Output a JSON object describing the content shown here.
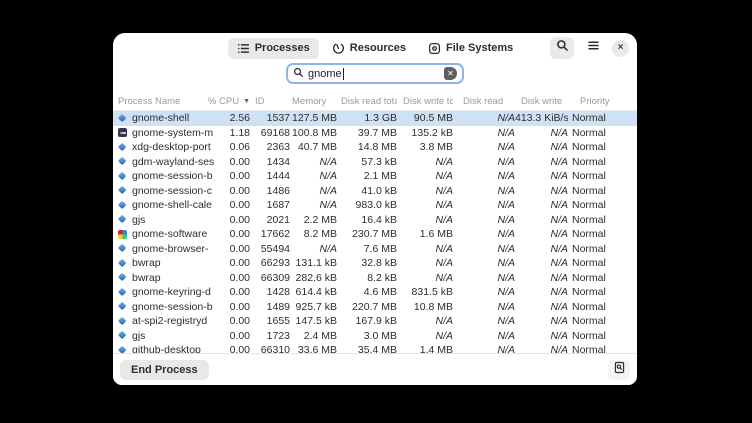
{
  "colors": {
    "accent": "#3584e4",
    "selection_row": "#cfe1f4",
    "active_tab_bg": "#e9e9e9"
  },
  "header": {
    "tabs": [
      {
        "label": "Processes",
        "icon": "processes-list-icon",
        "active": true
      },
      {
        "label": "Resources",
        "icon": "speedometer-icon",
        "active": false
      },
      {
        "label": "File Systems",
        "icon": "disk-icon",
        "active": false
      }
    ],
    "close_label": "×"
  },
  "search": {
    "value": "gnome"
  },
  "table": {
    "sort_arrow": "▼",
    "columns": [
      {
        "label": "Process Name"
      },
      {
        "label": "% CPU",
        "sort": "desc"
      },
      {
        "label": "ID"
      },
      {
        "label": "Memory"
      },
      {
        "label": "Disk read total"
      },
      {
        "label": "Disk write total"
      },
      {
        "label": "Disk read"
      },
      {
        "label": "Disk write"
      },
      {
        "label": "Priority"
      }
    ],
    "rows": [
      {
        "icon": "app",
        "name": "gnome-shell",
        "cpu": "2.56",
        "id": "1537",
        "memory": "127.5 MB",
        "disk_read_total": "1.3 GB",
        "disk_write_total": "90.5 MB",
        "disk_read": "N/A",
        "disk_write": "413.3 KiB/s",
        "priority": "Normal",
        "selected": true
      },
      {
        "icon": "monitor",
        "name": "gnome-system-m",
        "cpu": "1.18",
        "id": "69168",
        "memory": "100.8 MB",
        "disk_read_total": "39.7 MB",
        "disk_write_total": "135.2 kB",
        "disk_read": "N/A",
        "disk_write": "N/A",
        "priority": "Normal",
        "selected": false
      },
      {
        "icon": "app",
        "name": "xdg-desktop-port",
        "cpu": "0.06",
        "id": "2363",
        "memory": "40.7 MB",
        "disk_read_total": "14.8 MB",
        "disk_write_total": "3.8 MB",
        "disk_read": "N/A",
        "disk_write": "N/A",
        "priority": "Normal",
        "selected": false
      },
      {
        "icon": "app",
        "name": "gdm-wayland-ses",
        "cpu": "0.00",
        "id": "1434",
        "memory": "N/A",
        "disk_read_total": "57.3 kB",
        "disk_write_total": "N/A",
        "disk_read": "N/A",
        "disk_write": "N/A",
        "priority": "Normal",
        "selected": false
      },
      {
        "icon": "app",
        "name": "gnome-session-b",
        "cpu": "0.00",
        "id": "1444",
        "memory": "N/A",
        "disk_read_total": "2.1 MB",
        "disk_write_total": "N/A",
        "disk_read": "N/A",
        "disk_write": "N/A",
        "priority": "Normal",
        "selected": false
      },
      {
        "icon": "app",
        "name": "gnome-session-c",
        "cpu": "0.00",
        "id": "1486",
        "memory": "N/A",
        "disk_read_total": "41.0 kB",
        "disk_write_total": "N/A",
        "disk_read": "N/A",
        "disk_write": "N/A",
        "priority": "Normal",
        "selected": false
      },
      {
        "icon": "app",
        "name": "gnome-shell-cale",
        "cpu": "0.00",
        "id": "1687",
        "memory": "N/A",
        "disk_read_total": "983.0 kB",
        "disk_write_total": "N/A",
        "disk_read": "N/A",
        "disk_write": "N/A",
        "priority": "Normal",
        "selected": false
      },
      {
        "icon": "app",
        "name": "gjs",
        "cpu": "0.00",
        "id": "2021",
        "memory": "2.2 MB",
        "disk_read_total": "16.4 kB",
        "disk_write_total": "N/A",
        "disk_read": "N/A",
        "disk_write": "N/A",
        "priority": "Normal",
        "selected": false
      },
      {
        "icon": "software",
        "name": "gnome-software",
        "cpu": "0.00",
        "id": "17662",
        "memory": "8.2 MB",
        "disk_read_total": "230.7 MB",
        "disk_write_total": "1.6 MB",
        "disk_read": "N/A",
        "disk_write": "N/A",
        "priority": "Normal",
        "selected": false
      },
      {
        "icon": "app",
        "name": "gnome-browser-",
        "cpu": "0.00",
        "id": "55494",
        "memory": "N/A",
        "disk_read_total": "7.6 MB",
        "disk_write_total": "N/A",
        "disk_read": "N/A",
        "disk_write": "N/A",
        "priority": "Normal",
        "selected": false
      },
      {
        "icon": "app",
        "name": "bwrap",
        "cpu": "0.00",
        "id": "66293",
        "memory": "131.1 kB",
        "disk_read_total": "32.8 kB",
        "disk_write_total": "N/A",
        "disk_read": "N/A",
        "disk_write": "N/A",
        "priority": "Normal",
        "selected": false
      },
      {
        "icon": "app",
        "name": "bwrap",
        "cpu": "0.00",
        "id": "66309",
        "memory": "282.6 kB",
        "disk_read_total": "8.2 kB",
        "disk_write_total": "N/A",
        "disk_read": "N/A",
        "disk_write": "N/A",
        "priority": "Normal",
        "selected": false
      },
      {
        "icon": "app",
        "name": "gnome-keyring-d",
        "cpu": "0.00",
        "id": "1428",
        "memory": "614.4 kB",
        "disk_read_total": "4.6 MB",
        "disk_write_total": "831.5 kB",
        "disk_read": "N/A",
        "disk_write": "N/A",
        "priority": "Normal",
        "selected": false
      },
      {
        "icon": "app",
        "name": "gnome-session-b",
        "cpu": "0.00",
        "id": "1489",
        "memory": "925.7 kB",
        "disk_read_total": "220.7 MB",
        "disk_write_total": "10.8 MB",
        "disk_read": "N/A",
        "disk_write": "N/A",
        "priority": "Normal",
        "selected": false
      },
      {
        "icon": "app",
        "name": "at-spi2-registryd",
        "cpu": "0.00",
        "id": "1655",
        "memory": "147.5 kB",
        "disk_read_total": "167.9 kB",
        "disk_write_total": "N/A",
        "disk_read": "N/A",
        "disk_write": "N/A",
        "priority": "Normal",
        "selected": false
      },
      {
        "icon": "app",
        "name": "gjs",
        "cpu": "0.00",
        "id": "1723",
        "memory": "2.4 MB",
        "disk_read_total": "3.0 MB",
        "disk_write_total": "N/A",
        "disk_read": "N/A",
        "disk_write": "N/A",
        "priority": "Normal",
        "selected": false
      },
      {
        "icon": "app",
        "name": "github-desktop",
        "cpu": "0.00",
        "id": "66310",
        "memory": "33.6 MB",
        "disk_read_total": "35.4 MB",
        "disk_write_total": "1.4 MB",
        "disk_read": "N/A",
        "disk_write": "N/A",
        "priority": "Normal",
        "selected": false
      }
    ]
  },
  "footer": {
    "end_process_label": "End Process"
  }
}
